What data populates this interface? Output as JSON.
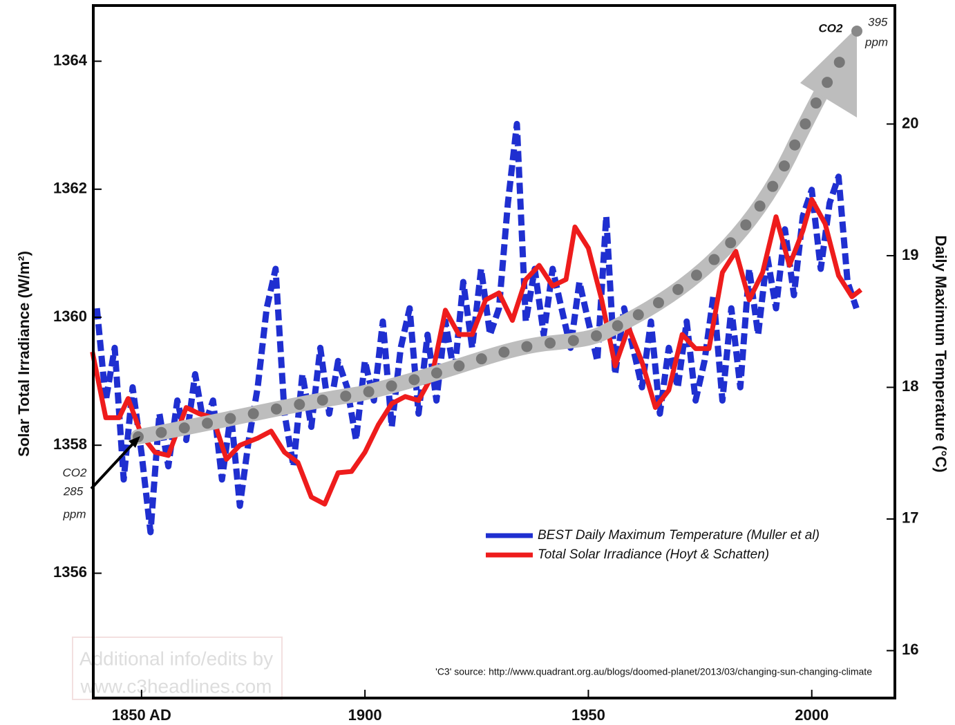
{
  "chart_data": {
    "type": "line",
    "xlabel": null,
    "ylabel": "Solar Total Irradiance (W/m²)",
    "y2label": "Daily Maximum Temperature (°C)",
    "xlim": [
      1839.2,
      2018.6
    ],
    "xticks": [
      {
        "value": 1850,
        "label": "1850 AD"
      },
      1900,
      1950,
      2000
    ],
    "ylim": [
      1354.05,
      1364.87
    ],
    "yticks": [
      1356,
      1358,
      1360,
      1362,
      1364
    ],
    "y2lim": [
      15.64,
      20.9
    ],
    "y2ticks": [
      16,
      17,
      18,
      19,
      20
    ],
    "legend": "lower right",
    "series": [
      {
        "name": "BEST Daily Maximum Temperature (Muller et al)",
        "color": "#1f2fd0",
        "axis": "y2",
        "x": [
          1840,
          1842,
          1844,
          1846,
          1848,
          1850,
          1852,
          1854,
          1856,
          1858,
          1860,
          1862,
          1864,
          1866,
          1868,
          1870,
          1872,
          1874,
          1876,
          1878,
          1880,
          1882,
          1884,
          1886,
          1888,
          1890,
          1892,
          1894,
          1896,
          1898,
          1900,
          1902,
          1904,
          1906,
          1908,
          1910,
          1912,
          1914,
          1916,
          1918,
          1920,
          1922,
          1924,
          1926,
          1928,
          1930,
          1932,
          1934,
          1936,
          1938,
          1940,
          1942,
          1944,
          1946,
          1948,
          1950,
          1952,
          1954,
          1956,
          1958,
          1960,
          1962,
          1964,
          1966,
          1968,
          1970,
          1972,
          1974,
          1976,
          1978,
          1980,
          1982,
          1984,
          1986,
          1988,
          1990,
          1992,
          1994,
          1996,
          1998,
          2000,
          2002,
          2004,
          2006,
          2008,
          2010
        ],
        "values": [
          18.6,
          17.9,
          18.3,
          17.3,
          18.0,
          17.5,
          16.9,
          17.8,
          17.4,
          17.9,
          17.6,
          18.1,
          17.7,
          17.9,
          17.3,
          17.8,
          17.1,
          17.6,
          18.0,
          18.6,
          18.9,
          17.8,
          17.4,
          18.1,
          17.7,
          18.3,
          17.8,
          18.2,
          18.0,
          17.6,
          18.2,
          17.9,
          18.5,
          17.7,
          18.3,
          18.6,
          17.8,
          18.4,
          17.9,
          18.5,
          18.1,
          18.8,
          18.3,
          18.9,
          18.4,
          18.6,
          19.4,
          20.0,
          18.5,
          18.9,
          18.4,
          18.9,
          18.6,
          18.3,
          18.8,
          18.5,
          18.2,
          19.3,
          18.1,
          18.6,
          18.3,
          18.0,
          18.5,
          17.8,
          18.3,
          18.0,
          18.5,
          17.9,
          18.2,
          18.7,
          17.9,
          18.6,
          18.0,
          18.9,
          18.4,
          19.0,
          18.6,
          19.2,
          18.7,
          19.3,
          19.5,
          18.9,
          19.4,
          19.6,
          18.8,
          18.6
        ]
      },
      {
        "name": "Total Solar Irradiance (Hoyt & Schatten)",
        "color": "#ee1c1c",
        "x": [
          1839,
          1842,
          1845,
          1847,
          1850,
          1853,
          1856,
          1858,
          1860,
          1863,
          1866,
          1869,
          1872,
          1876,
          1879,
          1882,
          1885,
          1888,
          1891,
          1894,
          1897,
          1900,
          1903,
          1906,
          1909,
          1912,
          1915,
          1918,
          1921,
          1924,
          1927,
          1930,
          1933,
          1936,
          1939,
          1942,
          1945,
          1947,
          1950,
          1953,
          1956,
          1959,
          1962,
          1965,
          1968,
          1971,
          1974,
          1977,
          1980,
          1983,
          1986,
          1989,
          1992,
          1995,
          1998,
          2000,
          2003,
          2006,
          2009,
          2011
        ],
        "values": [
          1359.46,
          1358.43,
          1358.43,
          1358.73,
          1358.16,
          1357.89,
          1357.84,
          1358.22,
          1358.59,
          1358.49,
          1358.43,
          1357.78,
          1358.0,
          1358.11,
          1358.22,
          1357.89,
          1357.73,
          1357.19,
          1357.08,
          1357.57,
          1357.59,
          1357.89,
          1358.32,
          1358.65,
          1358.76,
          1358.7,
          1359.08,
          1360.11,
          1359.73,
          1359.73,
          1360.27,
          1360.38,
          1359.95,
          1360.59,
          1360.81,
          1360.49,
          1360.59,
          1361.41,
          1361.08,
          1360.27,
          1359.24,
          1359.84,
          1359.3,
          1358.59,
          1358.86,
          1359.73,
          1359.51,
          1359.51,
          1360.7,
          1361.03,
          1360.27,
          1360.7,
          1361.57,
          1360.81,
          1361.35,
          1361.84,
          1361.46,
          1360.65,
          1360.32,
          1360.43
        ]
      }
    ],
    "annotations": [
      "CO2",
      "285",
      "ppm",
      "CO2",
      "395",
      "ppm",
      "'C3' source: http://www.quadrant.org.au/blogs/doomed-planet/2013/03/changing-sun-changing-climate",
      "Additional info/edits by",
      "www.c3headlines.com"
    ]
  }
}
